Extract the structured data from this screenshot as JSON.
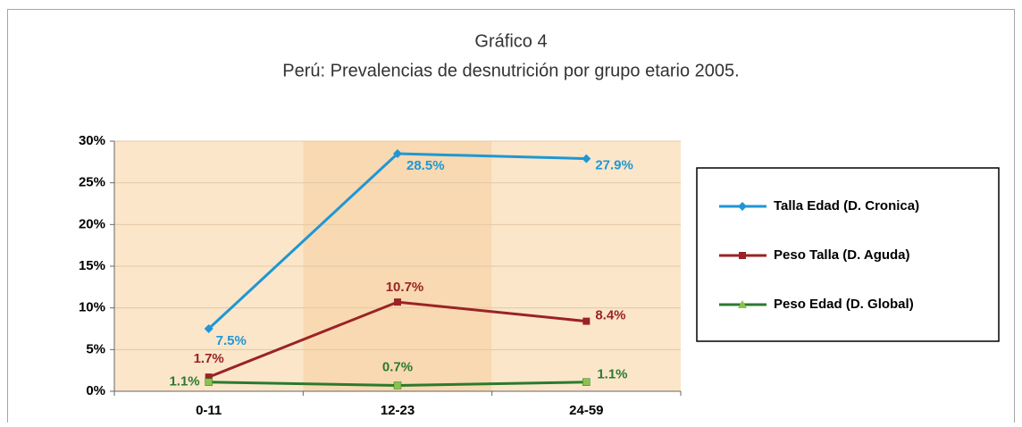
{
  "chart_data": {
    "type": "line",
    "title": "Gráfico 4",
    "subtitle": "Perú: Prevalencias de desnutrición por grupo etario 2005.",
    "categories": [
      "0-11",
      "12-23",
      "24-59"
    ],
    "series": [
      {
        "name": "Talla Edad (D. Cronica)",
        "color": "#1f97d4",
        "values": [
          7.5,
          28.5,
          27.9
        ],
        "value_labels": [
          "7.5%",
          "28.5%",
          "27.9%"
        ]
      },
      {
        "name": "Peso Talla (D. Aguda)",
        "color": "#9a2325",
        "values": [
          1.7,
          10.7,
          8.4
        ],
        "value_labels": [
          "1.7%",
          "10.7%",
          "8.4%"
        ]
      },
      {
        "name": "Peso Edad (D. Global)",
        "color": "#2b7a2e",
        "values": [
          1.1,
          0.7,
          1.1
        ],
        "value_labels": [
          "1.1%",
          "0.7%",
          "1.1%"
        ]
      }
    ],
    "ylim": [
      0,
      30
    ],
    "yticks": [
      {
        "value": 0,
        "label": "0%"
      },
      {
        "value": 5,
        "label": "5%"
      },
      {
        "value": 10,
        "label": "10%"
      },
      {
        "value": 15,
        "label": "15%"
      },
      {
        "value": 20,
        "label": "20%"
      },
      {
        "value": 25,
        "label": "25%"
      },
      {
        "value": 30,
        "label": "30%"
      }
    ],
    "legend": "right"
  }
}
